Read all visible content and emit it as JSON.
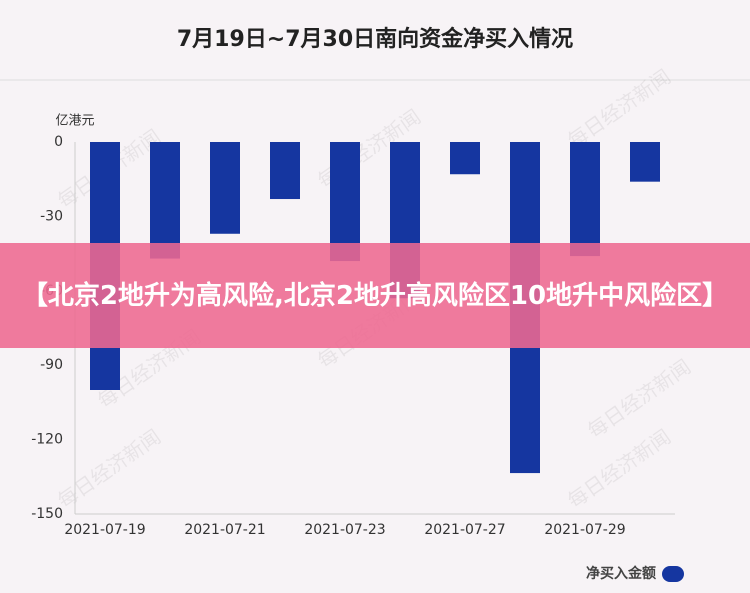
{
  "chart_data": {
    "type": "bar",
    "title": "7月19日~7月30日南向资金净买入情况",
    "y_label": "亿港元",
    "categories": [
      "2021-07-19",
      null,
      "2021-07-21",
      null,
      "2021-07-23",
      null,
      "2021-07-27",
      null,
      "2021-07-29",
      null
    ],
    "series": [
      {
        "name": "净买入金额",
        "color": "#1536a0",
        "values": [
          -100,
          -47,
          -37,
          -23,
          -48,
          -63,
          -13,
          -133.5,
          -46,
          -16
        ]
      }
    ],
    "ylim": [
      -150,
      0
    ],
    "yticks": [
      0,
      -30,
      -60,
      -90,
      -120,
      -150
    ],
    "grid": false,
    "legend": "bottom-right",
    "watermark": "每日经济新闻"
  },
  "banner": {
    "text": "【北京2地升为高风险,北京2地升高风险区10地升中风险区】"
  }
}
